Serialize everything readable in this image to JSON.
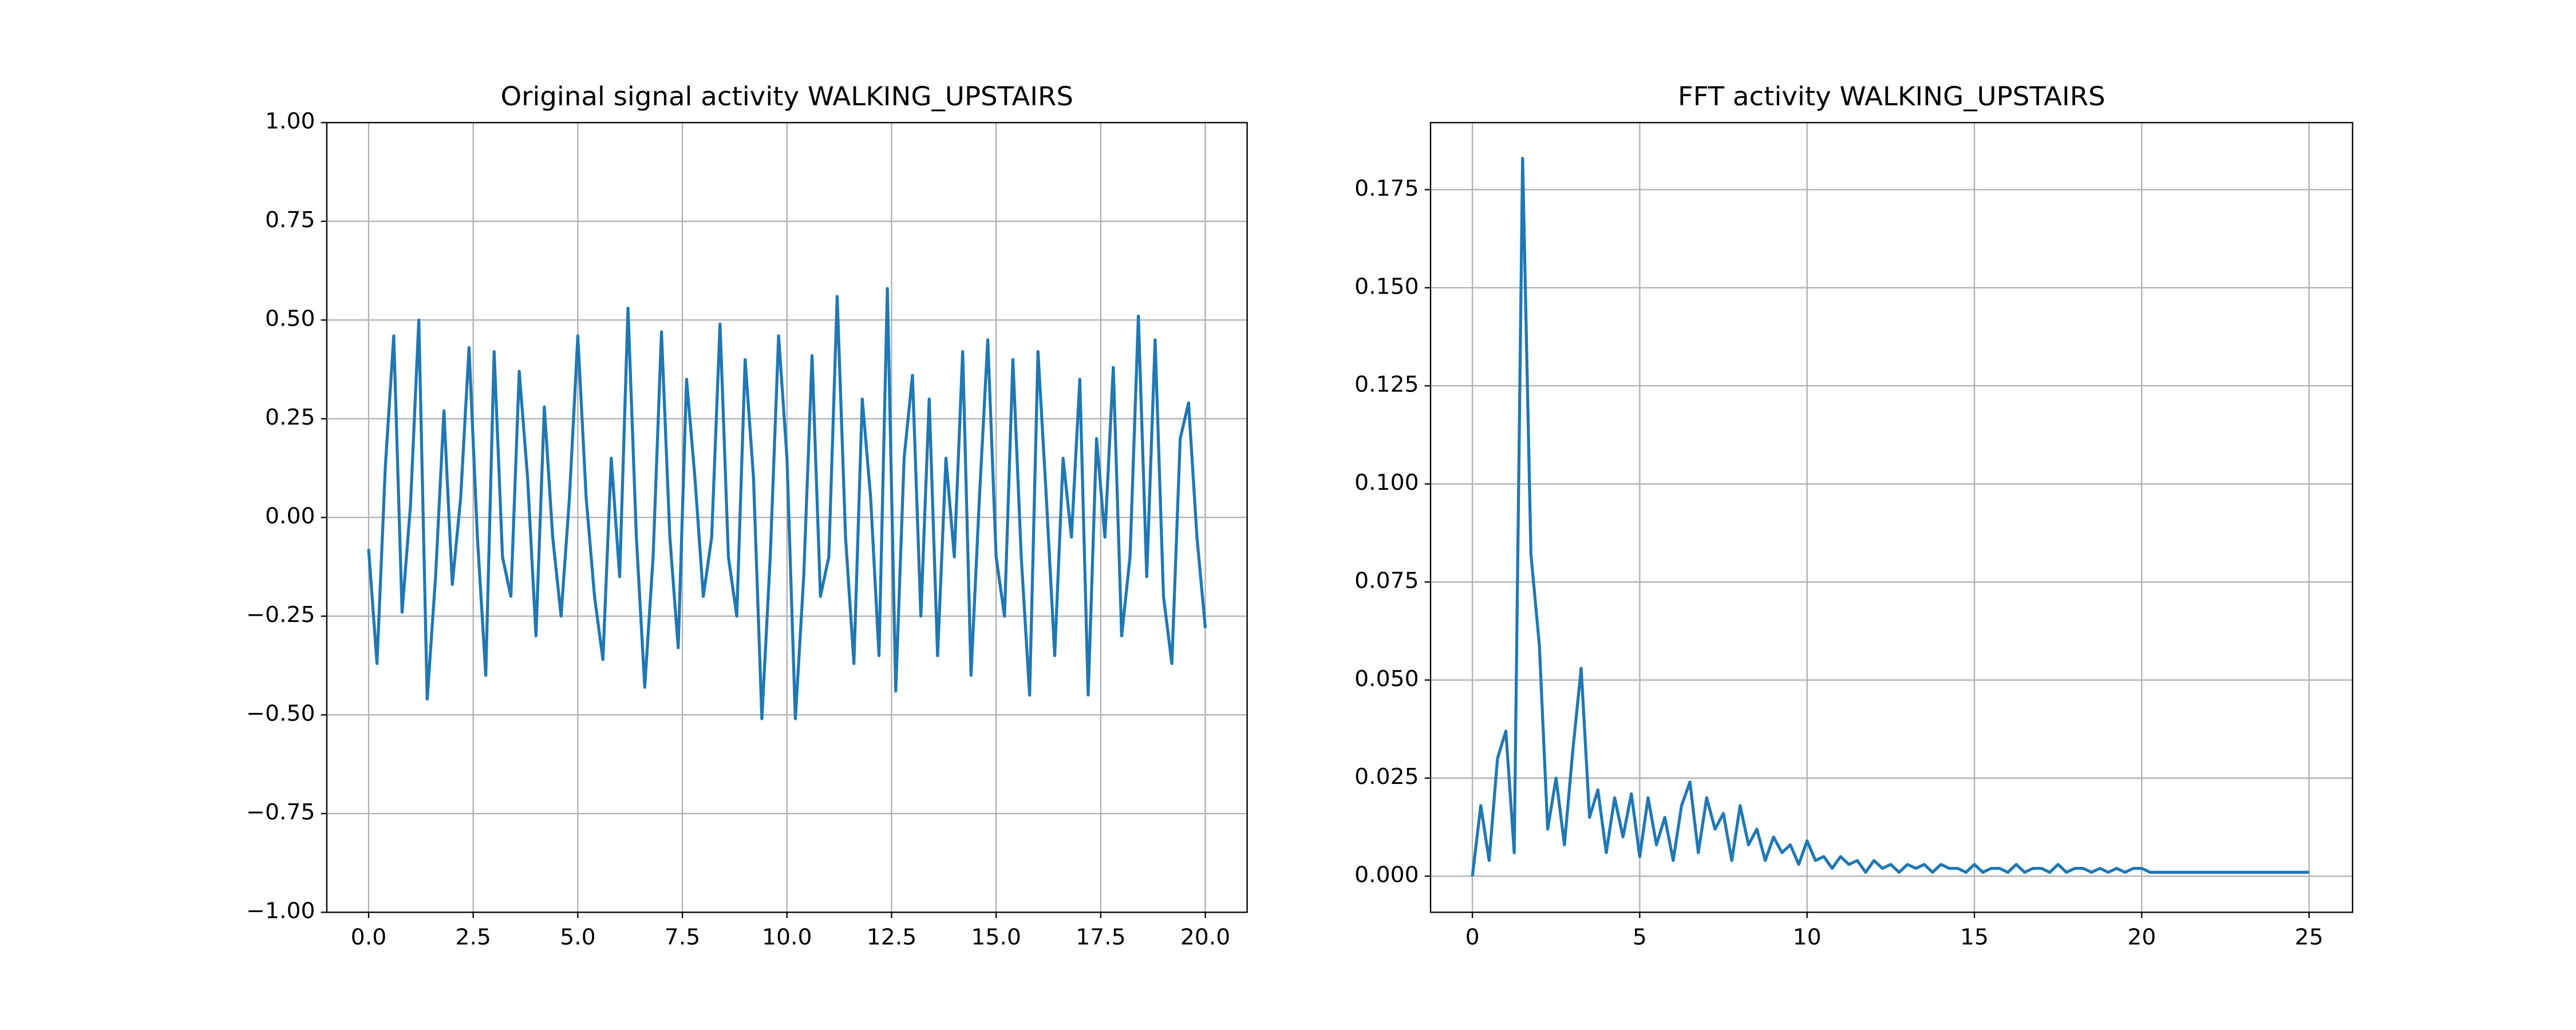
{
  "chart_data": [
    {
      "type": "line",
      "title": "Original signal activity WALKING_UPSTAIRS",
      "color": "#1f77b4",
      "grid": true,
      "x": [
        0.0,
        0.2,
        0.4,
        0.6,
        0.8,
        1.0,
        1.2,
        1.4,
        1.6,
        1.8,
        2.0,
        2.2,
        2.4,
        2.6,
        2.8,
        3.0,
        3.2,
        3.4,
        3.6,
        3.8,
        4.0,
        4.2,
        4.4,
        4.6,
        4.8,
        5.0,
        5.2,
        5.4,
        5.6,
        5.8,
        6.0,
        6.2,
        6.4,
        6.6,
        6.8,
        7.0,
        7.2,
        7.4,
        7.6,
        7.8,
        8.0,
        8.2,
        8.4,
        8.6,
        8.8,
        9.0,
        9.2,
        9.4,
        9.6,
        9.8,
        10.0,
        10.2,
        10.4,
        10.6,
        10.8,
        11.0,
        11.2,
        11.4,
        11.6,
        11.8,
        12.0,
        12.2,
        12.4,
        12.6,
        12.8,
        13.0,
        13.2,
        13.4,
        13.6,
        13.8,
        14.0,
        14.2,
        14.4,
        14.6,
        14.8,
        15.0,
        15.2,
        15.4,
        15.6,
        15.8,
        16.0,
        16.2,
        16.4,
        16.6,
        16.8,
        17.0,
        17.2,
        17.4,
        17.6,
        17.8,
        18.0,
        18.2,
        18.4,
        18.6,
        18.8,
        19.0,
        19.2,
        19.4,
        19.6,
        19.8,
        20.0
      ],
      "values": [
        -0.08,
        -0.37,
        0.13,
        0.46,
        -0.24,
        0.03,
        0.5,
        -0.46,
        -0.15,
        0.27,
        -0.17,
        0.05,
        0.43,
        -0.05,
        -0.4,
        0.42,
        -0.1,
        -0.2,
        0.37,
        0.1,
        -0.3,
        0.28,
        -0.05,
        -0.25,
        0.05,
        0.46,
        0.05,
        -0.2,
        -0.36,
        0.15,
        -0.15,
        0.53,
        -0.05,
        -0.43,
        -0.1,
        0.47,
        -0.05,
        -0.33,
        0.35,
        0.1,
        -0.2,
        -0.05,
        0.49,
        -0.1,
        -0.25,
        0.4,
        0.1,
        -0.51,
        -0.1,
        0.46,
        0.15,
        -0.51,
        -0.15,
        0.41,
        -0.2,
        -0.1,
        0.56,
        -0.05,
        -0.37,
        0.3,
        0.05,
        -0.35,
        0.58,
        -0.44,
        0.15,
        0.36,
        -0.25,
        0.3,
        -0.35,
        0.15,
        -0.1,
        0.42,
        -0.4,
        0.05,
        0.45,
        -0.1,
        -0.25,
        0.4,
        -0.1,
        -0.45,
        0.42,
        0.05,
        -0.35,
        0.15,
        -0.05,
        0.35,
        -0.45,
        0.2,
        -0.05,
        0.38,
        -0.3,
        -0.1,
        0.51,
        -0.15,
        0.45,
        -0.2,
        -0.37,
        0.2,
        0.29,
        -0.05,
        -0.28
      ],
      "xlim": [
        -1,
        21
      ],
      "ylim": [
        -1,
        1
      ],
      "xticks": [
        {
          "value": 0,
          "label": "0.0"
        },
        {
          "value": 2.5,
          "label": "2.5"
        },
        {
          "value": 5,
          "label": "5.0"
        },
        {
          "value": 7.5,
          "label": "7.5"
        },
        {
          "value": 10,
          "label": "10.0"
        },
        {
          "value": 12.5,
          "label": "12.5"
        },
        {
          "value": 15,
          "label": "15.0"
        },
        {
          "value": 17.5,
          "label": "17.5"
        },
        {
          "value": 20,
          "label": "20.0"
        }
      ],
      "yticks": [
        {
          "value": -1,
          "label": "−1.00"
        },
        {
          "value": -0.75,
          "label": "−0.75"
        },
        {
          "value": -0.5,
          "label": "−0.50"
        },
        {
          "value": -0.25,
          "label": "−0.25"
        },
        {
          "value": 0,
          "label": "0.00"
        },
        {
          "value": 0.25,
          "label": "0.25"
        },
        {
          "value": 0.5,
          "label": "0.50"
        },
        {
          "value": 0.75,
          "label": "0.75"
        },
        {
          "value": 1,
          "label": "1.00"
        }
      ]
    },
    {
      "type": "line",
      "title": "FFT activity WALKING_UPSTAIRS",
      "color": "#1f77b4",
      "grid": true,
      "x": [
        0,
        0.25,
        0.5,
        0.75,
        1,
        1.25,
        1.5,
        1.75,
        2,
        2.25,
        2.5,
        2.75,
        3,
        3.25,
        3.5,
        3.75,
        4,
        4.25,
        4.5,
        4.75,
        5,
        5.25,
        5.5,
        5.75,
        6,
        6.25,
        6.5,
        6.75,
        7,
        7.25,
        7.5,
        7.75,
        8,
        8.25,
        8.5,
        8.75,
        9,
        9.25,
        9.5,
        9.75,
        10,
        10.25,
        10.5,
        10.75,
        11,
        11.25,
        11.5,
        11.75,
        12,
        12.25,
        12.5,
        12.75,
        13,
        13.25,
        13.5,
        13.75,
        14,
        14.25,
        14.5,
        14.75,
        15,
        15.25,
        15.5,
        15.75,
        16,
        16.25,
        16.5,
        16.75,
        17,
        17.25,
        17.5,
        17.75,
        18,
        18.25,
        18.5,
        18.75,
        19,
        19.25,
        19.5,
        19.75,
        20,
        20.25,
        20.5,
        20.75,
        21,
        21.25,
        21.5,
        21.75,
        22,
        22.25,
        22.5,
        22.75,
        23,
        23.25,
        23.5,
        23.75,
        24,
        24.25,
        24.5,
        24.75,
        25
      ],
      "values": [
        0.0,
        0.018,
        0.004,
        0.03,
        0.037,
        0.006,
        0.183,
        0.082,
        0.059,
        0.012,
        0.025,
        0.008,
        0.032,
        0.053,
        0.015,
        0.022,
        0.006,
        0.02,
        0.01,
        0.021,
        0.005,
        0.02,
        0.008,
        0.015,
        0.004,
        0.018,
        0.024,
        0.006,
        0.02,
        0.012,
        0.016,
        0.004,
        0.018,
        0.008,
        0.012,
        0.004,
        0.01,
        0.006,
        0.008,
        0.003,
        0.009,
        0.004,
        0.005,
        0.002,
        0.005,
        0.003,
        0.004,
        0.001,
        0.004,
        0.002,
        0.003,
        0.001,
        0.003,
        0.002,
        0.003,
        0.001,
        0.003,
        0.002,
        0.002,
        0.001,
        0.003,
        0.001,
        0.002,
        0.002,
        0.001,
        0.003,
        0.001,
        0.002,
        0.002,
        0.001,
        0.003,
        0.001,
        0.002,
        0.002,
        0.001,
        0.002,
        0.001,
        0.002,
        0.001,
        0.002,
        0.002,
        0.001,
        0.001,
        0.001,
        0.001,
        0.001,
        0.001,
        0.001,
        0.001,
        0.001,
        0.001,
        0.001,
        0.001,
        0.001,
        0.001,
        0.001,
        0.001,
        0.001,
        0.001,
        0.001,
        0.001
      ],
      "xlim": [
        -1.25,
        26.3
      ],
      "ylim": [
        -0.0092,
        0.1921
      ],
      "xticks": [
        0,
        5,
        10,
        15,
        20,
        25
      ],
      "yticks": [
        {
          "value": 0,
          "label": "0.000"
        },
        {
          "value": 0.025,
          "label": "0.025"
        },
        {
          "value": 0.05,
          "label": "0.050"
        },
        {
          "value": 0.075,
          "label": "0.075"
        },
        {
          "value": 0.1,
          "label": "0.100"
        },
        {
          "value": 0.125,
          "label": "0.125"
        },
        {
          "value": 0.15,
          "label": "0.150"
        },
        {
          "value": 0.175,
          "label": "0.175"
        }
      ]
    }
  ]
}
